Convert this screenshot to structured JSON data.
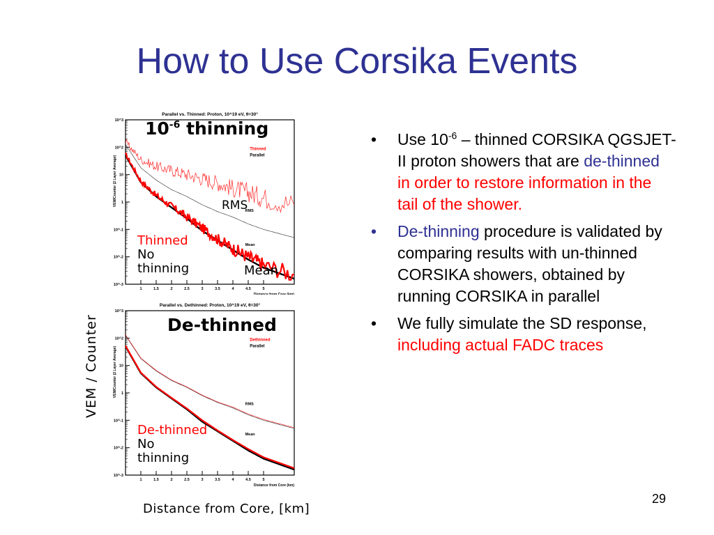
{
  "slide": {
    "title": "How to Use Corsika Events",
    "page_number": "29",
    "y_axis_label": "VEM / Counter",
    "x_axis_label": "Distance from Core,  [km]"
  },
  "top_plot": {
    "overlay_title_base": "10",
    "overlay_title_exp": "-6",
    "overlay_title_rest": " thinning",
    "label_rms": "RMS",
    "label_mean": "Mean",
    "label_thinned": "Thinned",
    "label_no_thinning": "No thinning"
  },
  "bottom_plot": {
    "overlay_title": "De-thinned",
    "label_dethinned": "De-thinned",
    "label_no_thinning": "No thinning"
  },
  "colors": {
    "title": "#2e3192",
    "accent_red": "#ff0000",
    "black": "#000000"
  },
  "bullets": [
    {
      "p1": "Use 10",
      "sup": "-6",
      "p2": " – thinned CORSIKA QGSJET-II proton showers that are ",
      "blue": "de-thinned",
      "red": " in order to restore information in the tail of the shower."
    },
    {
      "blue": "De-thinning",
      "p2": " procedure is validated by comparing results with un-thinned CORSIKA showers, obtained by running CORSIKA in parallel"
    },
    {
      "p1": "We fully simulate the SD response, ",
      "red": "including actual FADC traces"
    }
  ],
  "chart_data": [
    {
      "type": "line",
      "title": "Parallel vs. Thinned: Proton, 10^19 eV, θ=30°",
      "xlabel": "Distance from Core (km)",
      "ylabel": "VEM/Counter (2 Layer Average)",
      "xlim": [
        0.5,
        6
      ],
      "ylim_log10": [
        -3,
        3
      ],
      "x_ticks": [
        "1",
        "1.5",
        "2",
        "2.5",
        "3",
        "3.5",
        "4",
        "4.5",
        "5"
      ],
      "y_ticks": [
        "10^3",
        "10^2",
        "10",
        "1",
        "10^-1",
        "10^-2",
        "10^-3"
      ],
      "legend": [
        {
          "name": "Thinned",
          "color": "#ff0000"
        },
        {
          "name": "Parallel",
          "color": "#000000"
        }
      ],
      "curve_labels": [
        "RMS",
        "Mean"
      ],
      "series": [
        {
          "name": "Parallel",
          "metric": "Mean",
          "x": [
            0.5,
            1,
            1.5,
            2,
            2.5,
            3,
            3.5,
            4,
            4.5,
            5,
            6
          ],
          "log10_y": [
            1.7,
            0.72,
            0.2,
            -0.2,
            -0.6,
            -1.05,
            -1.4,
            -1.75,
            -2.1,
            -2.4,
            -2.8
          ]
        },
        {
          "name": "Thinned",
          "metric": "Mean",
          "x": [
            0.5,
            1,
            1.5,
            2,
            2.5,
            3,
            3.5,
            4,
            4.5,
            5,
            6
          ],
          "log10_y": [
            1.75,
            0.76,
            0.24,
            -0.15,
            -0.55,
            -0.95,
            -1.35,
            -1.7,
            -2.0,
            -2.3,
            -2.65
          ]
        },
        {
          "name": "Parallel",
          "metric": "RMS",
          "x": [
            0.5,
            1,
            1.5,
            2,
            2.5,
            3,
            3.5,
            4,
            4.5,
            5,
            6
          ],
          "log10_y": [
            2.1,
            1.25,
            0.8,
            0.45,
            0.2,
            -0.1,
            -0.35,
            -0.55,
            -0.8,
            -1.0,
            -1.3
          ]
        },
        {
          "name": "Thinned",
          "metric": "RMS",
          "x": [
            0.5,
            1,
            1.5,
            2,
            2.5,
            3,
            3.5,
            4,
            4.5,
            5,
            6
          ],
          "log10_y": [
            2.2,
            1.55,
            1.3,
            1.15,
            1.0,
            0.85,
            0.7,
            0.5,
            0.35,
            0.15,
            -0.1
          ]
        }
      ]
    },
    {
      "type": "line",
      "title": "Parallel vs. Dethinned: Proton, 10^19 eV, θ=30°",
      "xlabel": "Distance from Core (km)",
      "ylabel": "VEM/Counter (2 Layer Average)",
      "xlim": [
        0.5,
        6
      ],
      "ylim_log10": [
        -3,
        3
      ],
      "x_ticks": [
        "1",
        "1.5",
        "2",
        "2.5",
        "3",
        "3.5",
        "4",
        "4.5",
        "5"
      ],
      "y_ticks": [
        "10^3",
        "10^2",
        "10",
        "1",
        "10^-1",
        "10^-2",
        "10^-3"
      ],
      "legend": [
        {
          "name": "Dethinned",
          "color": "#ff0000"
        },
        {
          "name": "Parallel",
          "color": "#000000"
        }
      ],
      "curve_labels": [
        "RMS",
        "Mean"
      ],
      "series": [
        {
          "name": "Parallel",
          "metric": "Mean",
          "x": [
            0.5,
            1,
            1.5,
            2,
            2.5,
            3,
            3.5,
            4,
            4.5,
            5,
            6
          ],
          "log10_y": [
            1.7,
            0.72,
            0.2,
            -0.2,
            -0.6,
            -1.05,
            -1.4,
            -1.75,
            -2.1,
            -2.4,
            -2.8
          ]
        },
        {
          "name": "Dethinned",
          "metric": "Mean",
          "x": [
            0.5,
            1,
            1.5,
            2,
            2.5,
            3,
            3.5,
            4,
            4.5,
            5,
            6
          ],
          "log10_y": [
            1.72,
            0.74,
            0.22,
            -0.18,
            -0.57,
            -1.0,
            -1.37,
            -1.72,
            -2.05,
            -2.35,
            -2.75
          ]
        },
        {
          "name": "Parallel",
          "metric": "RMS",
          "x": [
            0.5,
            1,
            1.5,
            2,
            2.5,
            3,
            3.5,
            4,
            4.5,
            5,
            6
          ],
          "log10_y": [
            2.1,
            1.25,
            0.8,
            0.45,
            0.2,
            -0.1,
            -0.35,
            -0.55,
            -0.8,
            -1.0,
            -1.3
          ]
        },
        {
          "name": "Dethinned",
          "metric": "RMS",
          "x": [
            0.5,
            1,
            1.5,
            2,
            2.5,
            3,
            3.5,
            4,
            4.5,
            5,
            6
          ],
          "log10_y": [
            2.12,
            1.27,
            0.82,
            0.47,
            0.22,
            -0.08,
            -0.33,
            -0.52,
            -0.77,
            -0.97,
            -1.27
          ]
        }
      ]
    }
  ]
}
